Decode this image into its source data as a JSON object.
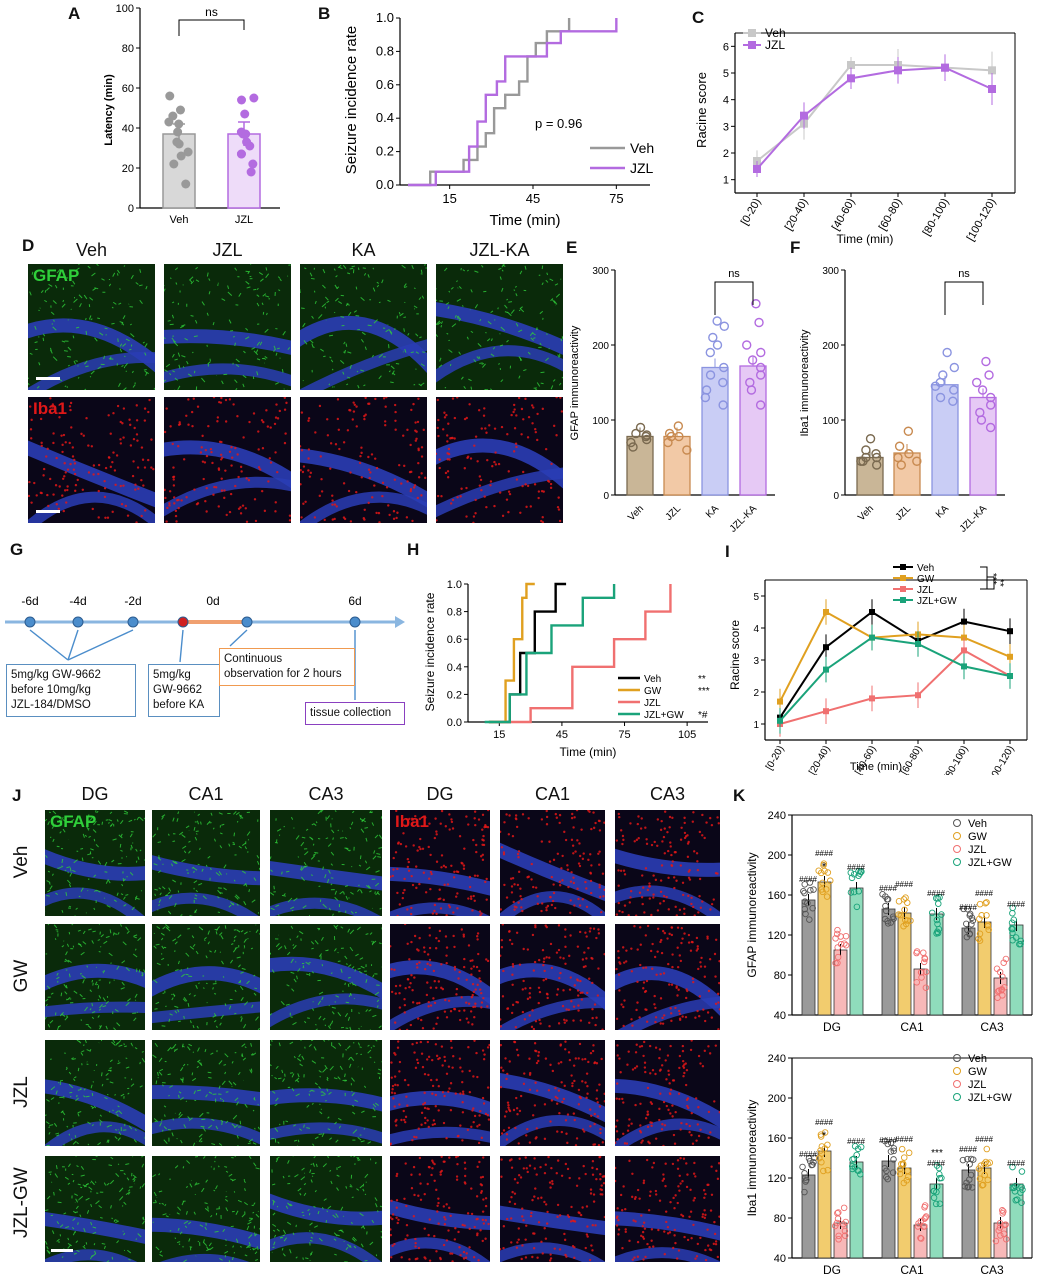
{
  "colors": {
    "veh": "#999999",
    "jzl": "#b36be0",
    "gw": "#e0a020",
    "jzlgw": "#1aa37a",
    "jzl_red": "#f07070",
    "ka": "#c9cdf5",
    "micro_blue": "#2a3db5",
    "gfap_green": "#2fcf3a",
    "iba_red": "#e01818"
  },
  "labels": {
    "A": "A",
    "B": "B",
    "C": "C",
    "D": "D",
    "E": "E",
    "F": "F",
    "G": "G",
    "H": "H",
    "I": "I",
    "J": "J",
    "K": "K"
  },
  "A": {
    "ylabel": "Latency (min)",
    "xlabels": [
      "Veh",
      "JZL"
    ],
    "sig": "ns",
    "yticks": [
      "0",
      "20",
      "40",
      "60",
      "80",
      "100"
    ]
  },
  "B": {
    "ylabel": "Seizure incidence rate",
    "xlabel": "Time (min)",
    "pval": "p = 0.96",
    "legend": [
      "Veh",
      "JZL"
    ],
    "xticks": [
      "15",
      "45",
      "75"
    ],
    "yticks": [
      "0.0",
      "0.2",
      "0.4",
      "0.6",
      "0.8",
      "1.0"
    ]
  },
  "C": {
    "ylabel": "Racine score",
    "xlabel": "Time (min)",
    "legend": [
      "Veh",
      "JZL"
    ],
    "xticks": [
      "[0-20)",
      "[20-40)",
      "[40-60)",
      "[60-80)",
      "[80-100)",
      "[100-120)"
    ],
    "yticks": [
      "1",
      "2",
      "3",
      "4",
      "5",
      "6"
    ]
  },
  "D": {
    "cols": [
      "Veh",
      "JZL",
      "KA",
      "JZL-KA"
    ],
    "row1": "GFAP",
    "row2": "Iba1"
  },
  "E": {
    "ylabel": "GFAP immunoreactivity",
    "xlabels": [
      "Veh",
      "JZL",
      "KA",
      "JZL-KA"
    ],
    "sig": "ns",
    "yticks": [
      "0",
      "100",
      "200",
      "300"
    ]
  },
  "F": {
    "ylabel": "Iba1 immunoreactivity",
    "xlabels": [
      "Veh",
      "JZL",
      "KA",
      "JZL-KA"
    ],
    "sig": "ns",
    "yticks": [
      "0",
      "100",
      "200",
      "300"
    ]
  },
  "G": {
    "days": [
      "-6d",
      "-4d",
      "-2d",
      "0d",
      "6d"
    ],
    "box1": [
      "5mg/kg GW-9662",
      "before 10mg/kg",
      "JZL-184/DMSO"
    ],
    "box2": [
      "5mg/kg",
      "GW-9662",
      "before KA"
    ],
    "box3": [
      "Continuous",
      "observation for 2 hours"
    ],
    "box4": "tissue collection"
  },
  "H": {
    "ylabel": "Seizure incidence rate",
    "xlabel": "Time (min)",
    "legend": [
      "Veh",
      "GW",
      "JZL",
      "JZL+GW"
    ],
    "stars": [
      "**",
      "***",
      "",
      "*#"
    ],
    "xticks": [
      "15",
      "45",
      "75",
      "105"
    ],
    "yticks": [
      "0.0",
      "0.2",
      "0.4",
      "0.6",
      "0.8",
      "1.0"
    ]
  },
  "I": {
    "ylabel": "Racine score",
    "xlabel": "Time (min)",
    "legend": [
      "Veh",
      "GW",
      "JZL",
      "JZL+GW"
    ],
    "bracket_stars": [
      "***",
      "**"
    ],
    "xticks": [
      "[0-20)",
      "[20-40)",
      "[40-60)",
      "[60-80)",
      "[80-100)",
      "[100-120)"
    ],
    "yticks": [
      "1",
      "2",
      "3",
      "4",
      "5",
      "6",
      "7",
      "8"
    ]
  },
  "J": {
    "cols": [
      "DG",
      "CA1",
      "CA3",
      "DG",
      "CA1",
      "CA3"
    ],
    "rows": [
      "Veh",
      "GW",
      "JZL",
      "JZL-GW"
    ],
    "left_label": "GFAP",
    "right_label": "Iba1"
  },
  "K": {
    "top_ylabel": "GFAP immunoreactivity",
    "bot_ylabel": "Iba1 immunoreactivity",
    "groups": [
      "DG",
      "CA1",
      "CA3"
    ],
    "legend": [
      "Veh",
      "GW",
      "JZL",
      "JZL+GW"
    ],
    "top_yticks": [
      "40",
      "80",
      "120",
      "160",
      "200",
      "240"
    ],
    "bot_yticks": [
      "40",
      "80",
      "120",
      "160",
      "200",
      "240"
    ],
    "hash": "####",
    "star1": "*",
    "star3": "***"
  },
  "chart_data": [
    {
      "panel": "A",
      "type": "bar",
      "categories": [
        "Veh",
        "JZL"
      ],
      "values": [
        37,
        37
      ],
      "errors": [
        5,
        6
      ],
      "ylim": [
        0,
        100
      ],
      "ylabel": "Latency (min)"
    },
    {
      "panel": "B",
      "type": "line",
      "xlabel": "Time (min)",
      "ylabel": "Seizure incidence rate",
      "series": [
        {
          "name": "Veh",
          "x": [
            0,
            8,
            20,
            25,
            28,
            31,
            35,
            40,
            43,
            46,
            50,
            58
          ],
          "y": [
            0,
            0.08,
            0.15,
            0.23,
            0.31,
            0.46,
            0.54,
            0.62,
            0.77,
            0.85,
            0.92,
            1.0
          ]
        },
        {
          "name": "JZL",
          "x": [
            0,
            10,
            22,
            25,
            28,
            32,
            35,
            40,
            50,
            55,
            60,
            75
          ],
          "y": [
            0,
            0.08,
            0.23,
            0.38,
            0.54,
            0.62,
            0.77,
            0.77,
            0.85,
            0.92,
            0.92,
            1.0
          ]
        }
      ]
    },
    {
      "panel": "C",
      "type": "line",
      "categories": [
        "[0-20)",
        "[20-40)",
        "[40-60)",
        "[60-80)",
        "[80-100)",
        "[100-120)"
      ],
      "series": [
        {
          "name": "Veh",
          "values": [
            1.7,
            3.1,
            5.3,
            5.3,
            5.2,
            5.1
          ]
        },
        {
          "name": "JZL",
          "values": [
            1.4,
            3.4,
            4.8,
            5.1,
            5.2,
            4.4
          ]
        }
      ],
      "ylim": [
        0.5,
        6.5
      ]
    },
    {
      "panel": "E",
      "type": "bar",
      "categories": [
        "Veh",
        "JZL",
        "KA",
        "JZL-KA"
      ],
      "values": [
        78,
        78,
        170,
        172
      ],
      "ylim": [
        0,
        300
      ]
    },
    {
      "panel": "F",
      "type": "bar",
      "categories": [
        "Veh",
        "JZL",
        "KA",
        "JZL-KA"
      ],
      "values": [
        50,
        56,
        147,
        130
      ],
      "ylim": [
        0,
        300
      ]
    },
    {
      "panel": "H",
      "type": "line",
      "series": [
        {
          "name": "Veh",
          "x": [
            10,
            20,
            25,
            32,
            42,
            47
          ],
          "y": [
            0,
            0.2,
            0.5,
            0.8,
            1.0,
            1.0
          ]
        },
        {
          "name": "GW",
          "x": [
            10,
            18,
            22,
            26,
            28,
            32
          ],
          "y": [
            0,
            0.3,
            0.6,
            0.9,
            1.0,
            1.0
          ]
        },
        {
          "name": "JZL",
          "x": [
            12,
            30,
            50,
            70,
            85,
            97
          ],
          "y": [
            0,
            0.1,
            0.4,
            0.6,
            0.8,
            1.0
          ]
        },
        {
          "name": "JZL+GW",
          "x": [
            8,
            20,
            28,
            40,
            55,
            70
          ],
          "y": [
            0,
            0.2,
            0.5,
            0.7,
            0.9,
            1.0
          ]
        }
      ]
    },
    {
      "panel": "I",
      "type": "line",
      "categories": [
        "[0-20)",
        "[20-40)",
        "[40-60)",
        "[60-80)",
        "[80-100)",
        "[100-120)"
      ],
      "series": [
        {
          "name": "Veh",
          "values": [
            1.2,
            3.4,
            4.5,
            3.6,
            4.2,
            3.9
          ]
        },
        {
          "name": "GW",
          "values": [
            1.7,
            4.5,
            3.7,
            3.8,
            3.7,
            3.1
          ]
        },
        {
          "name": "JZL",
          "values": [
            1.0,
            1.4,
            1.8,
            1.9,
            3.3,
            2.5
          ]
        },
        {
          "name": "JZL+GW",
          "values": [
            1.1,
            2.7,
            3.7,
            3.5,
            2.8,
            2.5
          ]
        }
      ],
      "ylim": [
        0.5,
        5.5
      ]
    },
    {
      "panel": "K-top",
      "type": "bar",
      "groups": [
        "DG",
        "CA1",
        "CA3"
      ],
      "series": [
        {
          "name": "Veh",
          "values": [
            155,
            146,
            127
          ]
        },
        {
          "name": "GW",
          "values": [
            173,
            142,
            133
          ]
        },
        {
          "name": "JZL",
          "values": [
            105,
            86,
            77
          ]
        },
        {
          "name": "JZL+GW",
          "values": [
            167,
            141,
            130
          ]
        }
      ],
      "ylim": [
        40,
        240
      ]
    },
    {
      "panel": "K-bottom",
      "type": "bar",
      "groups": [
        "DG",
        "CA1",
        "CA3"
      ],
      "series": [
        {
          "name": "Veh",
          "values": [
            123,
            137,
            128
          ]
        },
        {
          "name": "GW",
          "values": [
            147,
            130,
            130
          ]
        },
        {
          "name": "JZL",
          "values": [
            75,
            73,
            75
          ]
        },
        {
          "name": "JZL+GW",
          "values": [
            136,
            114,
            114
          ]
        }
      ],
      "ylim": [
        40,
        240
      ]
    }
  ]
}
